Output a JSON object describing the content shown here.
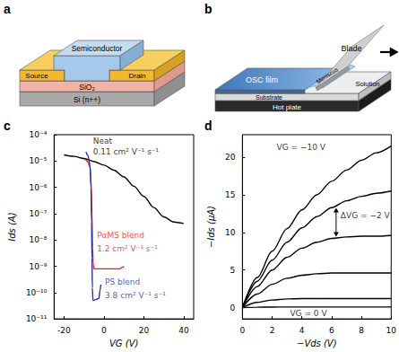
{
  "panel_labels": [
    "a",
    "b",
    "c",
    "d"
  ],
  "diagrams": {
    "a": {
      "labels": {
        "semiconductor": "Semiconductor",
        "source": "Source",
        "drain": "Drain",
        "dielectric": "SiO₂",
        "gate": "Si (n++)"
      }
    },
    "b": {
      "labels": {
        "blade": "Blade",
        "film": "OSC film",
        "meniscus": "Meniscus",
        "solution": "Solution",
        "substrate": "Substrate",
        "plate": "Hot plate"
      }
    }
  },
  "chart_data": [
    {
      "type": "line",
      "log": "y",
      "grid": false,
      "marker": "none",
      "line_style": "solid",
      "x_label": "VG (V)",
      "y_label": "Ids (A)",
      "xlim": [
        -25,
        45
      ],
      "xticks": [
        -20,
        0,
        20,
        40
      ],
      "ylim": [
        1e-11,
        0.0001
      ],
      "yticks": [
        {
          "value": 1e-11,
          "label": "10⁻¹¹"
        },
        {
          "value": 1e-10,
          "label": "10⁻¹⁰"
        },
        {
          "value": 1e-09,
          "label": "10⁻⁹"
        },
        {
          "value": 1e-08,
          "label": "10⁻⁸"
        },
        {
          "value": 1e-07,
          "label": "10⁻⁷"
        },
        {
          "value": 1e-06,
          "label": "10⁻⁶"
        },
        {
          "value": 1e-05,
          "label": "10⁻⁵"
        },
        {
          "value": 0.0001,
          "label": "10⁻⁴"
        }
      ],
      "series": [
        {
          "name": "Neat",
          "color": "#000000",
          "x": [
            -20,
            -15,
            -10,
            -5,
            0,
            5,
            10,
            15,
            20,
            25,
            30,
            35,
            40
          ],
          "values": [
            1.7e-05,
            1.5e-05,
            1.25e-05,
            9.5e-06,
            7e-06,
            4.5e-06,
            2.5e-06,
            1.1e-06,
            4.5e-07,
            1.7e-07,
            7.5e-08,
            4.8e-08,
            4.2e-08
          ]
        },
        {
          "name": "PαMS blend",
          "color": "#e3241b",
          "x": [
            -10,
            -9,
            -8,
            -7,
            -6.5,
            -6,
            -5.7,
            -5.4,
            -5,
            -3,
            0,
            5,
            8,
            9,
            10
          ],
          "values": [
            1.2e-05,
            1.1e-05,
            9e-06,
            6e-06,
            2e-06,
            1e-07,
            5e-09,
            1.2e-09,
            8e-10,
            8e-10,
            8e-10,
            8e-10,
            8e-10,
            9e-10,
            1e-09
          ]
        },
        {
          "name": "PS blend",
          "color": "#2633a6",
          "x": [
            -9,
            -8,
            -7,
            -6.5,
            -6.2,
            -6,
            -5.8,
            -5.5,
            -4,
            -2.5,
            -2,
            -1.5
          ],
          "values": [
            2.2e-05,
            1.6e-05,
            7e-06,
            1e-06,
            5e-08,
            2e-09,
            1.5e-10,
            5e-11,
            5.5e-11,
            6e-11,
            1.2e-10,
            2e-10
          ]
        }
      ],
      "annotations": [
        {
          "text": "Neat",
          "x": -5.5,
          "y": 6e-05,
          "color": "#000000"
        },
        {
          "text": "0.11 cm² V⁻¹ s⁻¹",
          "x": -5.5,
          "y": 2.3e-05,
          "color": "#000000"
        },
        {
          "text": "PαMS blend",
          "x": -3.5,
          "y": 1.5e-08,
          "color": "#e3241b"
        },
        {
          "text": "1.2 cm² V⁻¹ s⁻¹",
          "x": -3.5,
          "y": 4.5e-09,
          "color": "#e3241b"
        },
        {
          "text": "PS blend",
          "x": 0.5,
          "y": 2.5e-10,
          "color": "#2633a6"
        },
        {
          "text": "3.8 cm² V⁻¹ s⁻¹",
          "x": 0.5,
          "y": 7.5e-11,
          "color": "#2633a6"
        }
      ]
    },
    {
      "type": "line",
      "grid": false,
      "marker": "none",
      "line_style": "solid",
      "x_label": "−Vds (V)",
      "y_label": "−Ids (µA)",
      "xlim": [
        0,
        10
      ],
      "xticks": [
        0,
        2,
        4,
        6,
        8,
        10
      ],
      "ylim": [
        -1.5,
        23
      ],
      "yticks": [
        0,
        5,
        10,
        15,
        20
      ],
      "x": [
        0,
        1,
        2,
        3,
        4,
        5,
        6,
        7,
        8,
        9,
        10
      ],
      "series": [
        {
          "color": "#000000",
          "values": [
            0,
            4,
            7.5,
            10.5,
            13,
            15,
            16.8,
            18.3,
            19.6,
            20.6,
            21.5
          ]
        },
        {
          "color": "#000000",
          "values": [
            0,
            3.5,
            6.3,
            8.7,
            10.6,
            12.1,
            13.3,
            14.2,
            14.8,
            15.2,
            15.5
          ]
        },
        {
          "color": "#000000",
          "values": [
            0,
            2.8,
            5,
            6.7,
            7.9,
            8.7,
            9.2,
            9.4,
            9.5,
            9.5,
            9.6
          ]
        },
        {
          "color": "#000000",
          "values": [
            0,
            1.8,
            3.1,
            3.9,
            4.3,
            4.5,
            4.6,
            4.6,
            4.6,
            4.6,
            4.6
          ]
        },
        {
          "color": "#000000",
          "values": [
            0,
            0.7,
            1,
            1.15,
            1.2,
            1.2,
            1.2,
            1.2,
            1.2,
            1.2,
            1.2
          ]
        },
        {
          "color": "#000000",
          "values": [
            0,
            0.05,
            0.07,
            0.08,
            0.08,
            0.08,
            0.08,
            0.08,
            0.08,
            0.08,
            0.08
          ]
        }
      ],
      "annotations": [
        {
          "text": "VG = −10 V",
          "x": 2.3,
          "y": 21.3,
          "color": "#000000"
        },
        {
          "text": "ΔVG = −2 V",
          "x": 6.6,
          "y": 12.3,
          "color": "#000000"
        },
        {
          "text": "VG = 0 V",
          "x": 3.2,
          "y": -0.75,
          "color": "#000000"
        }
      ]
    }
  ]
}
